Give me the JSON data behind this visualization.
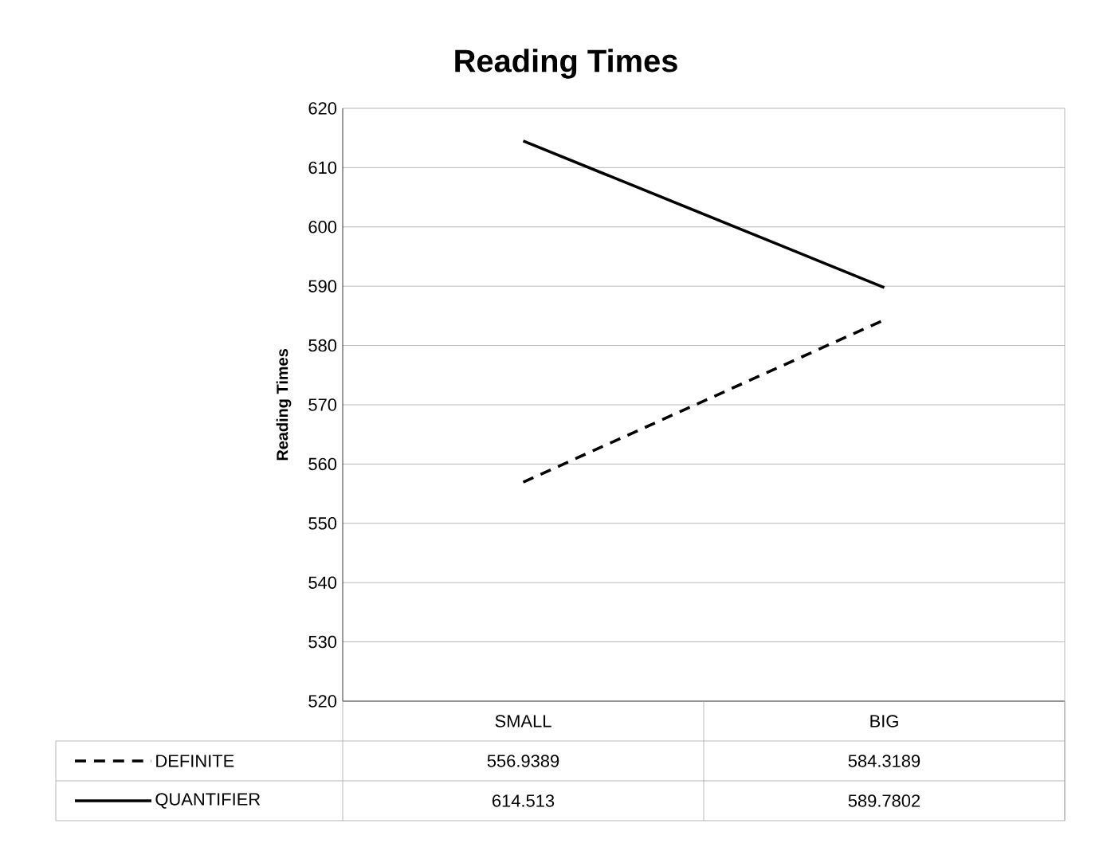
{
  "chart_data": {
    "type": "line",
    "title": "Reading Times",
    "ylabel": "Reading Times",
    "categories": [
      "SMALL",
      "BIG"
    ],
    "series": [
      {
        "name": "DEFINITE",
        "color": "#000000",
        "line_style": "dashed",
        "values": [
          556.9389,
          584.3189
        ]
      },
      {
        "name": "QUANTIFIER",
        "color": "#000000",
        "line_style": "solid",
        "values": [
          614.513,
          589.7802
        ]
      }
    ],
    "ylim": [
      520,
      620
    ],
    "yticks": [
      520,
      530,
      540,
      550,
      560,
      570,
      580,
      590,
      600,
      610,
      620
    ],
    "grid": "y",
    "legend": "bottom",
    "data_labels": true
  }
}
